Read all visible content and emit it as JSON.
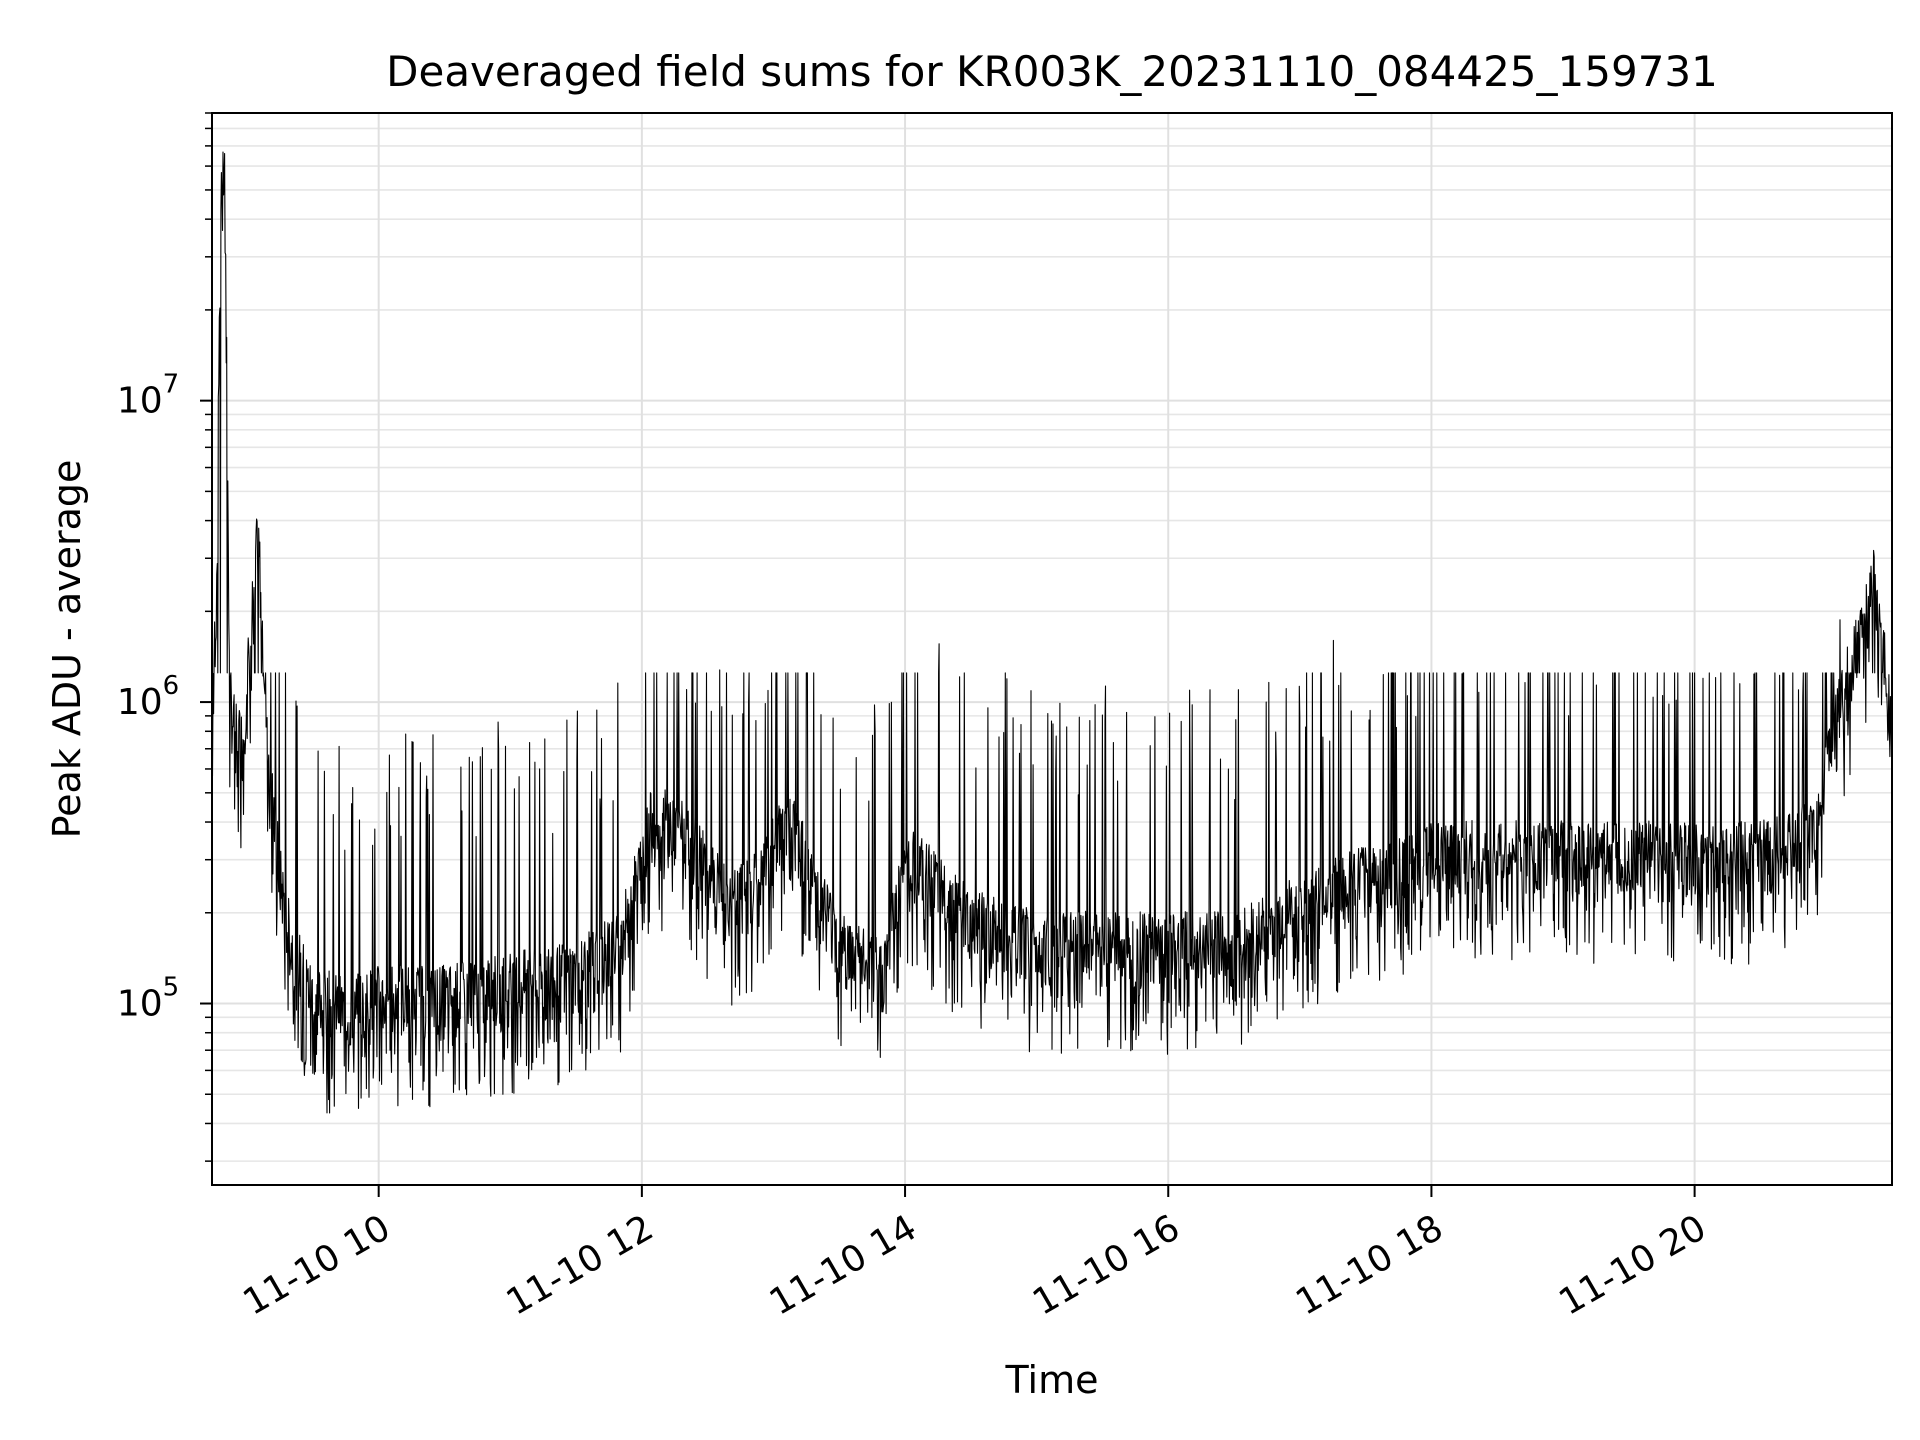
{
  "chart_data": {
    "type": "line",
    "title": "Deaveraged field sums for KR003K_20231110_084425_159731",
    "xlabel": "Time",
    "ylabel": "Peak ADU - average",
    "xlim": [
      "2023-11-10 08:44",
      "2023-11-10 21:30"
    ],
    "ylim": [
      25000,
      90000000
    ],
    "yscale": "log",
    "grid": true,
    "legend": "none",
    "line_color": "#000000",
    "x_ticks": [
      {
        "value": "2023-11-10 10:00",
        "label": "11-10 10"
      },
      {
        "value": "2023-11-10 12:00",
        "label": "11-10 12"
      },
      {
        "value": "2023-11-10 14:00",
        "label": "11-10 14"
      },
      {
        "value": "2023-11-10 16:00",
        "label": "11-10 16"
      },
      {
        "value": "2023-11-10 18:00",
        "label": "11-10 18"
      },
      {
        "value": "2023-11-10 20:00",
        "label": "11-10 20"
      }
    ],
    "y_ticks": [
      {
        "value": 100000,
        "base": "10",
        "exp": "5"
      },
      {
        "value": 1000000,
        "base": "10",
        "exp": "6"
      },
      {
        "value": 10000000,
        "base": "10",
        "exp": "7"
      }
    ],
    "series": [
      {
        "x": [
          "2023-11-10 08:44",
          "2023-11-10 08:46",
          "2023-11-10 08:48",
          "2023-11-10 08:50",
          "2023-11-10 08:52",
          "2023-11-10 08:54",
          "2023-11-10 08:58",
          "2023-11-10 09:05",
          "2023-11-10 09:10",
          "2023-11-10 09:15",
          "2023-11-10 09:20",
          "2023-11-10 09:30",
          "2023-11-10 09:45",
          "2023-11-10 10:00",
          "2023-11-10 10:30",
          "2023-11-10 11:00",
          "2023-11-10 11:30",
          "2023-11-10 11:50",
          "2023-11-10 12:05",
          "2023-11-10 12:20",
          "2023-11-10 12:40",
          "2023-11-10 12:55",
          "2023-11-10 13:05",
          "2023-11-10 13:15",
          "2023-11-10 13:30",
          "2023-11-10 13:50",
          "2023-11-10 14:00",
          "2023-11-10 14:30",
          "2023-11-10 15:00",
          "2023-11-10 15:30",
          "2023-11-10 16:00",
          "2023-11-10 16:30",
          "2023-11-10 17:00",
          "2023-11-10 17:30",
          "2023-11-10 18:00",
          "2023-11-10 18:30",
          "2023-11-10 19:00",
          "2023-11-10 19:30",
          "2023-11-10 20:00",
          "2023-11-10 20:30",
          "2023-11-10 20:55",
          "2023-11-10 21:05",
          "2023-11-10 21:15",
          "2023-11-10 21:22",
          "2023-11-10 21:30"
        ],
        "y": [
          1000000,
          2000000,
          45000000,
          60000000,
          1000000,
          800000,
          700000,
          3500000,
          600000,
          250000,
          150000,
          100000,
          90000,
          100000,
          100000,
          110000,
          120000,
          150000,
          400000,
          350000,
          200000,
          250000,
          400000,
          300000,
          150000,
          120000,
          300000,
          180000,
          150000,
          150000,
          150000,
          150000,
          200000,
          250000,
          300000,
          300000,
          300000,
          300000,
          300000,
          300000,
          350000,
          900000,
          1500000,
          2500000,
          800000
        ]
      }
    ]
  }
}
